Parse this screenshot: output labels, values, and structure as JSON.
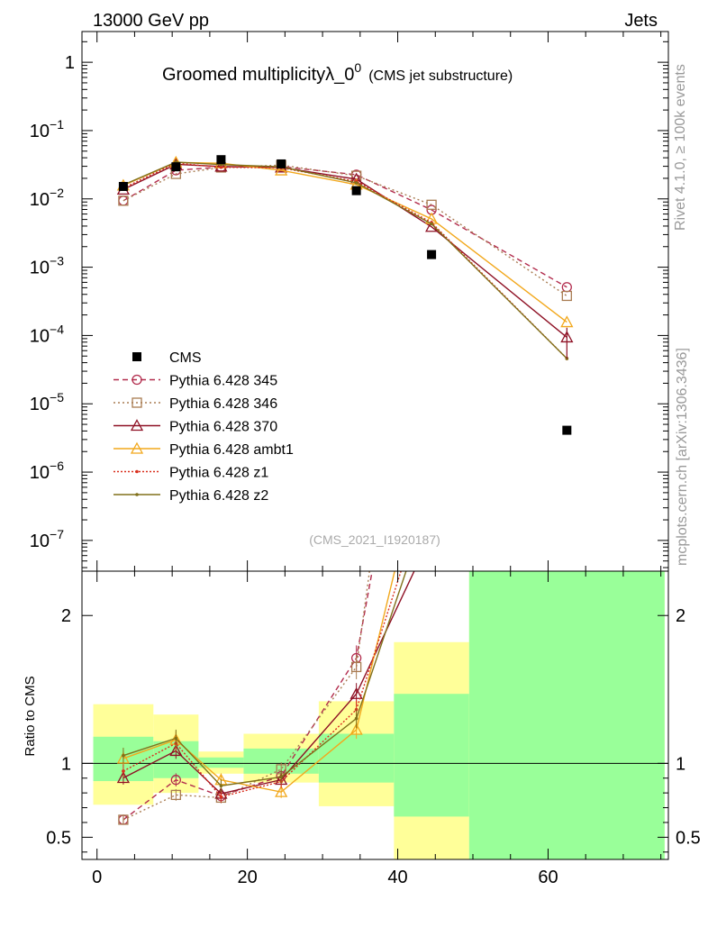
{
  "header": {
    "left": "13000 GeV pp",
    "right": "Jets"
  },
  "side_labels": {
    "top": "Rivet 4.1.0, ≥ 100k events",
    "bottom": "mcplots.cern.ch [arXiv:1306.3436]"
  },
  "chart_data": {
    "type": "line",
    "title": "Groomed multiplicityλ_0",
    "title_sup": "0",
    "title_suffix": "(CMS jet substructure)",
    "analysis_tag": "(CMS_2021_I1920187)",
    "xlim": [
      -2,
      76
    ],
    "main_ylim_log10": [
      -7.45,
      0.45
    ],
    "ratio_ylim": [
      0.35,
      2.3
    ],
    "ratio_ylabel": "Ratio to CMS",
    "x_ticks": [
      "0",
      "20",
      "40",
      "60"
    ],
    "main_y_ticks": [
      {
        "base": "1",
        "exp": ""
      },
      {
        "base": "10",
        "exp": "−1"
      },
      {
        "base": "10",
        "exp": "−2"
      },
      {
        "base": "10",
        "exp": "−3"
      },
      {
        "base": "10",
        "exp": "−4"
      },
      {
        "base": "10",
        "exp": "−5"
      },
      {
        "base": "10",
        "exp": "−6"
      },
      {
        "base": "10",
        "exp": "−7"
      }
    ],
    "ratio_y_ticks": [
      "2",
      "1",
      "0.5"
    ],
    "x": [
      3.5,
      10.5,
      16.5,
      24.5,
      34.5,
      44.5,
      62.5
    ],
    "bins": [
      [
        -0.5,
        7.5
      ],
      [
        7.5,
        13.5
      ],
      [
        13.5,
        19.5
      ],
      [
        19.5,
        29.5
      ],
      [
        29.5,
        39.5
      ],
      [
        39.5,
        49.5
      ],
      [
        49.5,
        75.5
      ]
    ],
    "data": {
      "name": "CMS",
      "values": [
        0.0152,
        0.0295,
        0.0375,
        0.0325,
        0.0132,
        0.00153,
        4.1e-06
      ],
      "band_inner": [
        [
          0.88,
          1.18
        ],
        [
          0.9,
          1.15
        ],
        [
          0.97,
          1.04
        ],
        [
          0.93,
          1.1
        ],
        [
          0.87,
          1.2
        ],
        [
          0.64,
          1.47
        ],
        [
          0.35,
          2.3
        ]
      ],
      "band_outer": [
        [
          0.72,
          1.4
        ],
        [
          0.8,
          1.33
        ],
        [
          0.93,
          1.08
        ],
        [
          0.87,
          1.2
        ],
        [
          0.71,
          1.42
        ],
        [
          0.35,
          1.82
        ],
        [
          0.35,
          2.3
        ]
      ]
    },
    "series": [
      {
        "name": "Pythia 6.428 345",
        "color": "#b22c4d",
        "dash": "6,4",
        "marker": "circle",
        "values": [
          0.0094,
          0.0262,
          0.0292,
          0.0297,
          0.0226,
          0.0069,
          0.00051
        ]
      },
      {
        "name": "Pythia 6.428 346",
        "color": "#a97c52",
        "dash": "2,3",
        "marker": "square",
        "values": [
          0.0094,
          0.0232,
          0.0288,
          0.0312,
          0.0218,
          0.0082,
          0.00038
        ]
      },
      {
        "name": "Pythia 6.428 370",
        "color": "#8e1024",
        "dash": "",
        "marker": "triangle",
        "values": [
          0.0137,
          0.032,
          0.0298,
          0.0289,
          0.0194,
          0.0039,
          9.4e-05
        ]
      },
      {
        "name": "Pythia 6.428 ambt1",
        "color": "#f2a81c",
        "dash": "",
        "marker": "triangle",
        "values": [
          0.0157,
          0.0342,
          0.0333,
          0.0262,
          0.0162,
          0.0051,
          0.000157
        ]
      },
      {
        "name": "Pythia 6.428 z1",
        "color": "#d9301e",
        "dash": "2,2",
        "marker": "dot",
        "values": [
          0.0144,
          0.0335,
          0.029,
          0.0285,
          0.018,
          0.0045,
          4.6e-05
        ]
      },
      {
        "name": "Pythia 6.428 z2",
        "color": "#80701a",
        "dash": "",
        "marker": "dot",
        "values": [
          0.016,
          0.0345,
          0.0318,
          0.0295,
          0.0172,
          0.0043,
          4.6e-05
        ]
      }
    ]
  }
}
